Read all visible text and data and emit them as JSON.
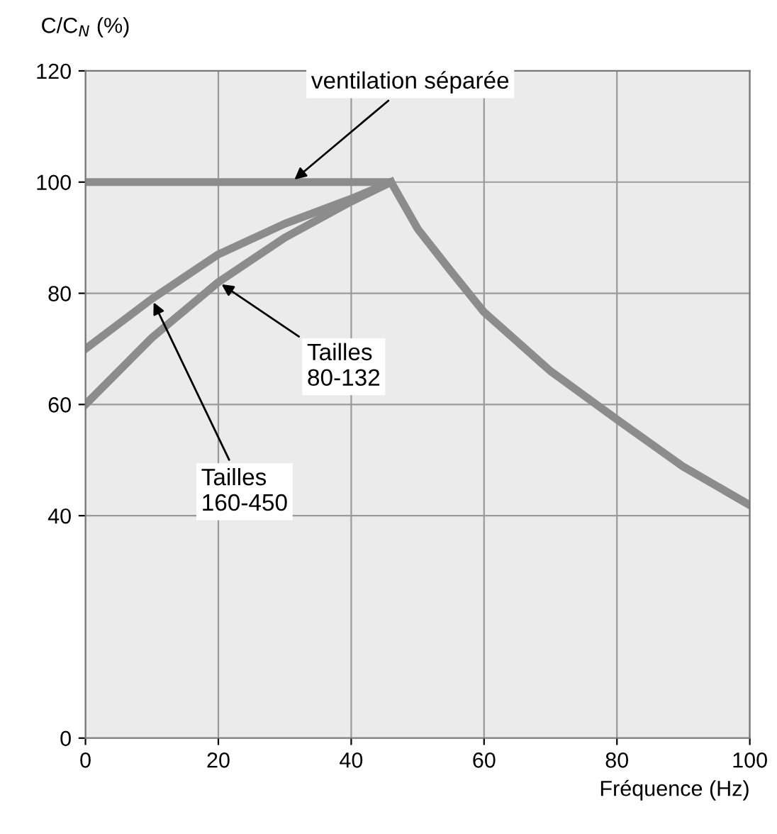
{
  "chart_data": {
    "type": "line",
    "xlabel": "Fréquence (Hz)",
    "ylabel": "C/C$_{N}$ (%)",
    "xlim": [
      0,
      100
    ],
    "ylim": [
      0,
      120
    ],
    "xticks": [
      0,
      20,
      40,
      60,
      80,
      100
    ],
    "yticks": [
      0,
      40,
      60,
      80,
      100,
      120
    ],
    "grid": true,
    "line_style": "solid",
    "marker": "none",
    "series": [
      {
        "color": "#8c8c8c",
        "x": [
          0,
          46,
          50,
          55,
          60,
          70,
          80,
          90,
          100
        ],
        "values": [
          100,
          100,
          91.6,
          84,
          76.6,
          66,
          57.3,
          48.8,
          41.9
        ]
      },
      {
        "color": "#8c8c8c",
        "x": [
          0,
          10,
          20,
          30,
          40,
          46
        ],
        "values": [
          60,
          72,
          82,
          90,
          96.5,
          100
        ]
      },
      {
        "color": "#8c8c8c",
        "x": [
          0,
          10,
          20,
          30,
          40,
          46
        ],
        "values": [
          70,
          79,
          87,
          92.5,
          97,
          100
        ]
      }
    ],
    "annotations": [
      {
        "text": "ventilation séparée",
        "x": 31,
        "y": 100
      },
      {
        "text": "Tailles\n80-132",
        "x": 20,
        "y": 82
      },
      {
        "text": "Tailles\n160-450",
        "x": 10,
        "y": 79
      }
    ]
  }
}
